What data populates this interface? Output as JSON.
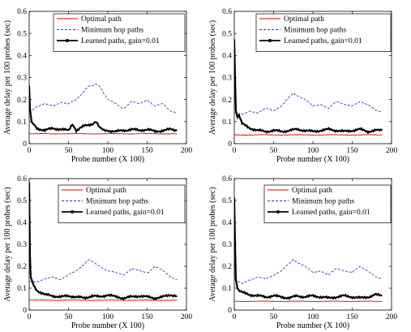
{
  "chart_data": [
    {
      "type": "line",
      "xlabel": "Probe number (X 100)",
      "ylabel": "Average delay per 100 probes (sec)",
      "xlim": [
        0,
        200
      ],
      "ylim": [
        0,
        0.6
      ],
      "xticks": [
        "0",
        "50",
        "100",
        "150",
        "200"
      ],
      "yticks": [
        "0",
        "0.1",
        "0.2",
        "0.3",
        "0.4",
        "0.5",
        "0.6"
      ],
      "legend_position": "top-right",
      "series": [
        {
          "name": "Optimal path",
          "color": "#e00000",
          "style": "solid",
          "x": [
            0,
            30,
            60,
            90,
            120,
            150,
            188
          ],
          "y": [
            0.045,
            0.045,
            0.045,
            0.045,
            0.045,
            0.045,
            0.045
          ]
        },
        {
          "name": "Minimum hop paths",
          "color": "#1f3fbf",
          "style": "dashed",
          "x": [
            0,
            10,
            20,
            30,
            40,
            50,
            60,
            70,
            75,
            80,
            85,
            90,
            95,
            100,
            110,
            120,
            130,
            140,
            150,
            160,
            170,
            180,
            188
          ],
          "y": [
            0.14,
            0.17,
            0.18,
            0.17,
            0.19,
            0.18,
            0.2,
            0.24,
            0.26,
            0.26,
            0.27,
            0.26,
            0.23,
            0.2,
            0.18,
            0.16,
            0.19,
            0.18,
            0.2,
            0.17,
            0.18,
            0.15,
            0.14
          ]
        },
        {
          "name": "Learned paths, gain=0.01",
          "color": "#000000",
          "style": "solid-marker",
          "x": [
            0,
            1,
            3,
            5,
            10,
            20,
            30,
            40,
            50,
            55,
            60,
            70,
            80,
            85,
            90,
            95,
            100,
            110,
            120,
            130,
            140,
            150,
            160,
            170,
            180,
            188
          ],
          "y": [
            0.26,
            0.16,
            0.1,
            0.09,
            0.07,
            0.06,
            0.07,
            0.065,
            0.06,
            0.09,
            0.06,
            0.08,
            0.09,
            0.1,
            0.07,
            0.06,
            0.06,
            0.055,
            0.06,
            0.065,
            0.06,
            0.065,
            0.055,
            0.06,
            0.065,
            0.06
          ]
        }
      ]
    },
    {
      "type": "line",
      "xlabel": "Probe number (X 100)",
      "ylabel": "Average delay per 100 probes (sec)",
      "xlim": [
        0,
        200
      ],
      "ylim": [
        0,
        0.6
      ],
      "xticks": [
        "0",
        "50",
        "100",
        "150",
        "200"
      ],
      "yticks": [
        "0",
        "0.1",
        "0.2",
        "0.3",
        "0.4",
        "0.5",
        "0.6"
      ],
      "legend_position": "top-right",
      "series": [
        {
          "name": "Optimal path",
          "color": "#e00000",
          "style": "solid",
          "x": [
            0,
            30,
            60,
            90,
            120,
            150,
            188
          ],
          "y": [
            0.04,
            0.04,
            0.04,
            0.04,
            0.04,
            0.04,
            0.04
          ]
        },
        {
          "name": "Minimum hop paths",
          "color": "#1f3fbf",
          "style": "dashed",
          "x": [
            0,
            10,
            20,
            30,
            40,
            50,
            60,
            70,
            75,
            80,
            90,
            100,
            110,
            120,
            130,
            140,
            150,
            160,
            170,
            180,
            188
          ],
          "y": [
            0.14,
            0.13,
            0.15,
            0.14,
            0.16,
            0.15,
            0.17,
            0.21,
            0.23,
            0.22,
            0.2,
            0.17,
            0.18,
            0.16,
            0.19,
            0.18,
            0.17,
            0.19,
            0.18,
            0.15,
            0.14
          ]
        },
        {
          "name": "Learned paths, gain=0.01",
          "color": "#000000",
          "style": "solid-marker",
          "x": [
            0,
            1,
            2,
            4,
            6,
            10,
            20,
            30,
            40,
            50,
            60,
            70,
            80,
            90,
            100,
            110,
            120,
            130,
            140,
            150,
            160,
            170,
            180,
            188
          ],
          "y": [
            0.47,
            0.3,
            0.15,
            0.12,
            0.13,
            0.09,
            0.07,
            0.06,
            0.055,
            0.06,
            0.055,
            0.06,
            0.065,
            0.06,
            0.055,
            0.06,
            0.065,
            0.06,
            0.055,
            0.06,
            0.065,
            0.055,
            0.06,
            0.06
          ]
        }
      ]
    },
    {
      "type": "line",
      "xlabel": "Probe number (X 100)",
      "ylabel": "Average delay per 100 probes (sec)",
      "xlim": [
        0,
        200
      ],
      "ylim": [
        0,
        0.6
      ],
      "xticks": [
        "0",
        "50",
        "100",
        "150",
        "200"
      ],
      "yticks": [
        "0",
        "0.1",
        "0.2",
        "0.3",
        "0.4",
        "0.5",
        "0.6"
      ],
      "legend_position": "top-right",
      "series": [
        {
          "name": "Optimal path",
          "color": "#e00000",
          "style": "solid",
          "x": [
            0,
            30,
            60,
            90,
            120,
            150,
            188
          ],
          "y": [
            0.045,
            0.045,
            0.045,
            0.045,
            0.045,
            0.045,
            0.045
          ]
        },
        {
          "name": "Minimum hop paths",
          "color": "#1f3fbf",
          "style": "dashed",
          "x": [
            0,
            10,
            20,
            30,
            40,
            50,
            60,
            70,
            75,
            80,
            90,
            100,
            110,
            120,
            130,
            140,
            150,
            160,
            170,
            180,
            188
          ],
          "y": [
            0.13,
            0.13,
            0.14,
            0.15,
            0.14,
            0.16,
            0.18,
            0.21,
            0.23,
            0.22,
            0.2,
            0.18,
            0.17,
            0.16,
            0.19,
            0.18,
            0.17,
            0.2,
            0.18,
            0.15,
            0.14
          ]
        },
        {
          "name": "Learned paths, gain=0.01",
          "color": "#000000",
          "style": "solid-marker",
          "x": [
            0,
            1,
            2,
            4,
            6,
            10,
            20,
            30,
            40,
            50,
            60,
            70,
            80,
            90,
            100,
            110,
            120,
            130,
            140,
            150,
            160,
            170,
            180,
            188
          ],
          "y": [
            0.58,
            0.25,
            0.15,
            0.13,
            0.11,
            0.09,
            0.07,
            0.065,
            0.06,
            0.065,
            0.06,
            0.055,
            0.065,
            0.06,
            0.07,
            0.06,
            0.055,
            0.06,
            0.065,
            0.06,
            0.055,
            0.06,
            0.07,
            0.065
          ]
        }
      ]
    },
    {
      "type": "line",
      "xlabel": "Probe number (X 100)",
      "ylabel": "Average delay per 100 probes (sec)",
      "xlim": [
        0,
        200
      ],
      "ylim": [
        0,
        0.6
      ],
      "xticks": [
        "0",
        "50",
        "100",
        "150",
        "200"
      ],
      "yticks": [
        "0",
        "0.1",
        "0.2",
        "0.3",
        "0.4",
        "0.5",
        "0.6"
      ],
      "legend_position": "top-right",
      "series": [
        {
          "name": "Optimal path",
          "color": "#e00000",
          "style": "solid",
          "x": [
            0,
            30,
            60,
            90,
            120,
            150,
            188
          ],
          "y": [
            0.04,
            0.04,
            0.04,
            0.04,
            0.04,
            0.04,
            0.04
          ]
        },
        {
          "name": "Minimum hop paths",
          "color": "#1f3fbf",
          "style": "dashed",
          "x": [
            0,
            10,
            20,
            30,
            40,
            50,
            60,
            70,
            75,
            80,
            90,
            100,
            110,
            120,
            130,
            140,
            150,
            160,
            170,
            180,
            188
          ],
          "y": [
            0.14,
            0.12,
            0.14,
            0.15,
            0.14,
            0.16,
            0.18,
            0.21,
            0.23,
            0.22,
            0.2,
            0.17,
            0.18,
            0.16,
            0.19,
            0.18,
            0.17,
            0.2,
            0.18,
            0.15,
            0.14
          ]
        },
        {
          "name": "Learned paths, gain=0.01",
          "color": "#000000",
          "style": "solid-marker",
          "x": [
            0,
            1,
            2,
            4,
            6,
            10,
            20,
            30,
            40,
            50,
            60,
            70,
            80,
            90,
            100,
            110,
            120,
            130,
            140,
            150,
            160,
            170,
            180,
            188
          ],
          "y": [
            0.51,
            0.3,
            0.14,
            0.1,
            0.09,
            0.08,
            0.07,
            0.065,
            0.06,
            0.065,
            0.06,
            0.055,
            0.065,
            0.06,
            0.065,
            0.06,
            0.055,
            0.06,
            0.065,
            0.06,
            0.055,
            0.06,
            0.07,
            0.065
          ]
        }
      ]
    }
  ]
}
